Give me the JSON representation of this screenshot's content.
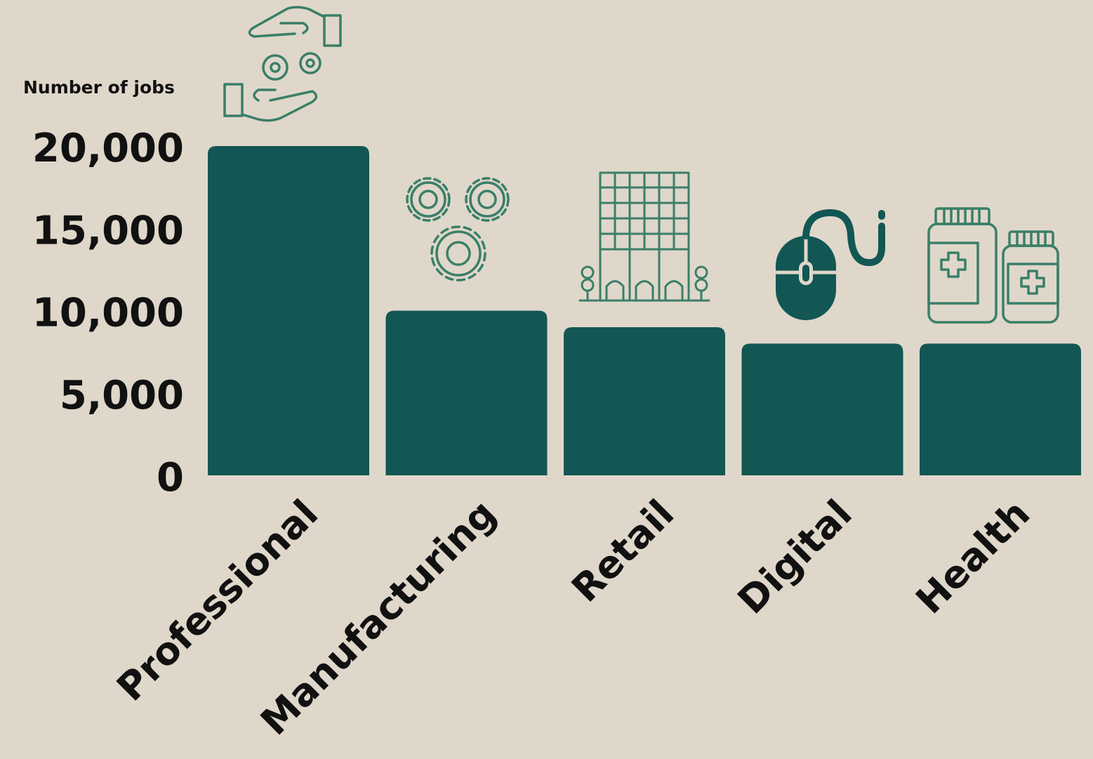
{
  "chart_data": {
    "type": "bar",
    "ylabel": "Number of jobs",
    "ylim": [
      0,
      20000
    ],
    "yticks": [
      0,
      5000,
      10000,
      15000,
      20000
    ],
    "ytick_labels": [
      "0",
      "5,000",
      "10,000",
      "15,000",
      "20,000"
    ],
    "categories": [
      "Professional",
      "Manufacturing",
      "Retail",
      "Digital",
      "Health"
    ],
    "values": [
      20000,
      10000,
      9000,
      8000,
      8000
    ],
    "grid": false,
    "legend": "none"
  },
  "colors": {
    "background": "#dfd7ca",
    "bar": "#125754",
    "icon_outline": "#3a7f68",
    "icon_solid": "#125754",
    "text": "#111111"
  },
  "icons": [
    "hands-gears-icon",
    "gears-icon",
    "building-icon",
    "mouse-icon",
    "medicine-bottles-icon"
  ]
}
